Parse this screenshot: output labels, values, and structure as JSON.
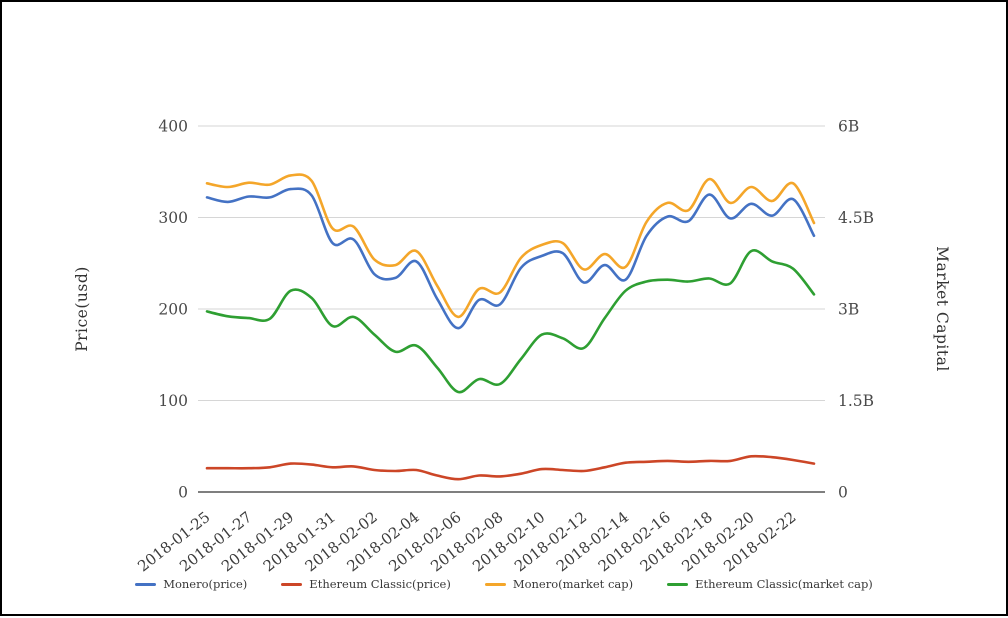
{
  "figure": {
    "background": "#ffffff",
    "frame_color": "#000000",
    "grid_color": "#d6d6d6",
    "axis_line_color": "#333333",
    "tick_label_color": "#4a4a4a",
    "date_label_color": "#3c3c3c"
  },
  "left_axis": {
    "title": "Price(usd)",
    "tick_labels": [
      "0",
      "100",
      "200",
      "300",
      "400"
    ],
    "tick_values": [
      0,
      100,
      200,
      300,
      400
    ]
  },
  "right_axis": {
    "title": "Market Capital",
    "tick_labels": [
      "0",
      "1.5B",
      "3B",
      "4.5B",
      "6B"
    ],
    "tick_values": [
      0,
      1.5,
      3,
      4.5,
      6
    ]
  },
  "legend": {
    "items": [
      {
        "label": "Monero(price)",
        "color": "#4472c4"
      },
      {
        "label": "Ethereum Classic(price)",
        "color": "#cc4627"
      },
      {
        "label": "Monero(market cap)",
        "color": "#f4a62a"
      },
      {
        "label": "Ethereum Classic(market cap)",
        "color": "#2e9f32"
      }
    ]
  },
  "chart_data": {
    "type": "line",
    "smooth": true,
    "x": [
      "2018-01-25",
      "2018-01-26",
      "2018-01-27",
      "2018-01-28",
      "2018-01-29",
      "2018-01-30",
      "2018-01-31",
      "2018-02-01",
      "2018-02-02",
      "2018-02-03",
      "2018-02-04",
      "2018-02-05",
      "2018-02-06",
      "2018-02-07",
      "2018-02-08",
      "2018-02-09",
      "2018-02-10",
      "2018-02-11",
      "2018-02-12",
      "2018-02-13",
      "2018-02-14",
      "2018-02-15",
      "2018-02-16",
      "2018-02-17",
      "2018-02-18",
      "2018-02-19",
      "2018-02-20",
      "2018-02-21",
      "2018-02-22",
      "2018-02-23"
    ],
    "x_tick_labels": [
      "2018-01-25",
      "2018-01-27",
      "2018-01-29",
      "2018-01-31",
      "2018-02-02",
      "2018-02-04",
      "2018-02-06",
      "2018-02-08",
      "2018-02-10",
      "2018-02-12",
      "2018-02-14",
      "2018-02-16",
      "2018-02-18",
      "2018-02-20",
      "2018-02-22"
    ],
    "x_tick_every": 2,
    "xlabel": "",
    "left_ylabel": "Price(usd)",
    "right_ylabel": "Market Capital",
    "left_ylim": [
      0,
      400
    ],
    "right_ylim_billions": [
      0,
      6
    ],
    "grid": "horizontal-only",
    "legend_position": "bottom-center",
    "series": [
      {
        "name": "Monero(price)",
        "axis": "left",
        "unit": "USD",
        "color": "#4472c4",
        "values": [
          322,
          317,
          323,
          322,
          331,
          324,
          272,
          276,
          238,
          234,
          252,
          211,
          179,
          210,
          205,
          245,
          258,
          261,
          229,
          248,
          232,
          280,
          301,
          296,
          325,
          299,
          315,
          302,
          320,
          280
        ]
      },
      {
        "name": "Ethereum Classic(price)",
        "axis": "left",
        "unit": "USD",
        "color": "#cc4627",
        "values": [
          26,
          26,
          26,
          27,
          31,
          30,
          27,
          28,
          24,
          23,
          24,
          18,
          14,
          18,
          17,
          20,
          25,
          24,
          23,
          27,
          32,
          33,
          34,
          33,
          34,
          34,
          39,
          38,
          35,
          31
        ]
      },
      {
        "name": "Monero(market cap)",
        "axis": "right",
        "unit": "billion USD",
        "color": "#f4a62a",
        "values": [
          5.06,
          5.0,
          5.07,
          5.04,
          5.19,
          5.1,
          4.32,
          4.35,
          3.81,
          3.72,
          3.95,
          3.38,
          2.87,
          3.33,
          3.27,
          3.84,
          4.05,
          4.08,
          3.65,
          3.9,
          3.69,
          4.43,
          4.74,
          4.62,
          5.13,
          4.74,
          5.0,
          4.77,
          5.06,
          4.41
        ]
      },
      {
        "name": "Ethereum Classic(market cap)",
        "axis": "right",
        "unit": "billion USD",
        "color": "#2e9f32",
        "values": [
          2.96,
          2.88,
          2.85,
          2.84,
          3.3,
          3.18,
          2.72,
          2.87,
          2.58,
          2.3,
          2.4,
          2.04,
          1.64,
          1.85,
          1.77,
          2.18,
          2.58,
          2.52,
          2.36,
          2.85,
          3.3,
          3.45,
          3.48,
          3.45,
          3.5,
          3.42,
          3.95,
          3.78,
          3.66,
          3.24
        ]
      }
    ]
  }
}
